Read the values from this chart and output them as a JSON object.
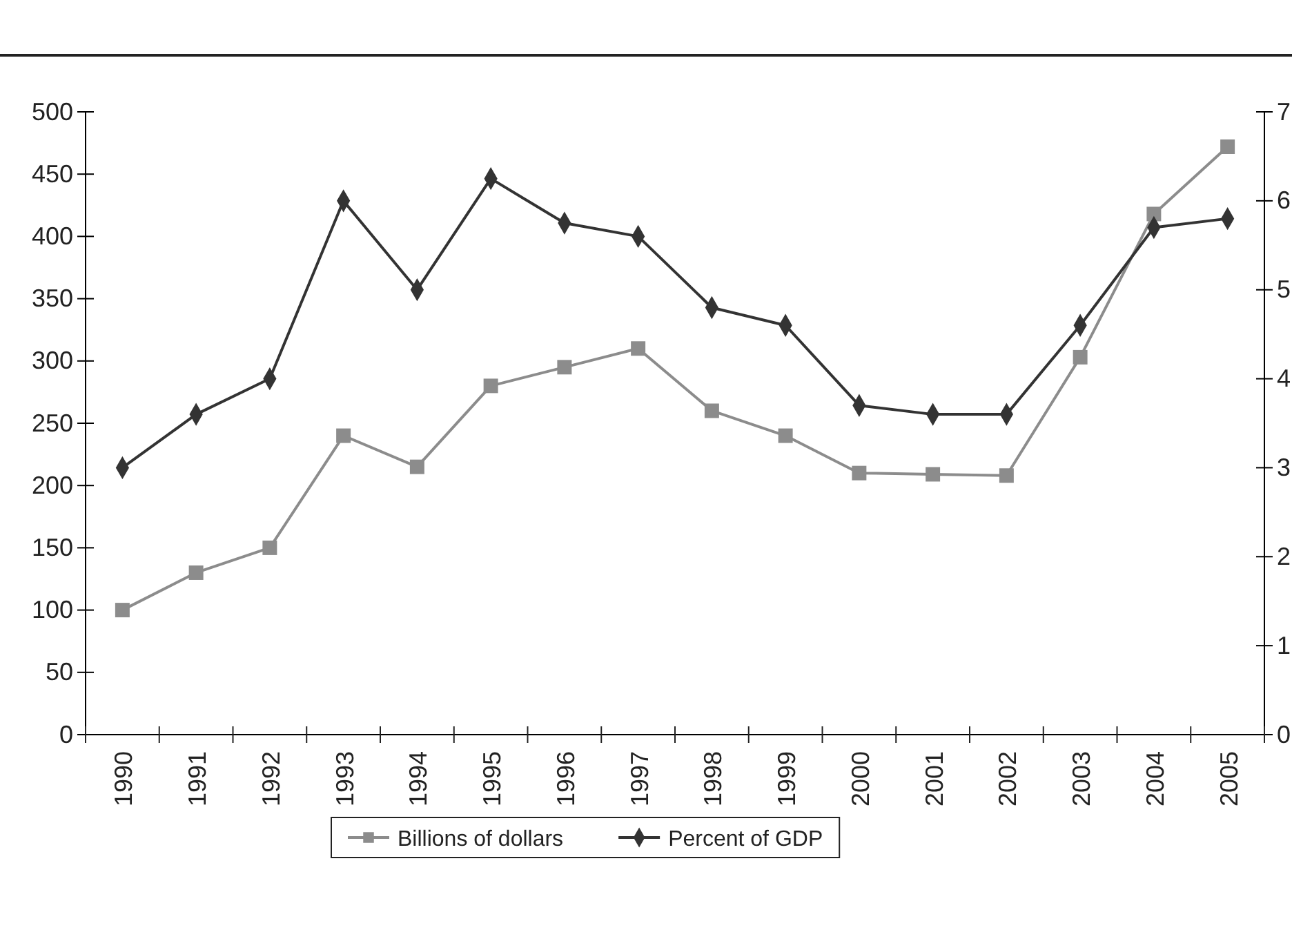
{
  "chart_data": {
    "type": "line",
    "categories": [
      "1990",
      "1991",
      "1992",
      "1993",
      "1994",
      "1995",
      "1996",
      "1997",
      "1998",
      "1999",
      "2000",
      "2001",
      "2002",
      "2003",
      "2004",
      "2005"
    ],
    "series": [
      {
        "name": "Billions of dollars",
        "color": "#8c8c8c",
        "marker": "square",
        "values": [
          100,
          130,
          150,
          240,
          215,
          280,
          295,
          310,
          260,
          240,
          210,
          209,
          208,
          303,
          418,
          472
        ]
      },
      {
        "name": "Percent of GDP",
        "color": "#333333",
        "marker": "diamond",
        "axis": "y2",
        "values": [
          3.0,
          3.6,
          4.0,
          6.0,
          5.0,
          6.25,
          5.75,
          5.6,
          4.8,
          4.6,
          3.7,
          3.6,
          3.6,
          4.6,
          5.7,
          5.8
        ]
      }
    ],
    "ylim": [
      0,
      500
    ],
    "yticks": [
      0,
      50,
      100,
      150,
      200,
      250,
      300,
      350,
      400,
      450,
      500
    ],
    "y2lim": [
      0,
      7
    ],
    "y2ticks": [
      0,
      1,
      2,
      3,
      4,
      5,
      6,
      7
    ],
    "grid": false,
    "legend": "bottom",
    "line_style": "solid"
  }
}
